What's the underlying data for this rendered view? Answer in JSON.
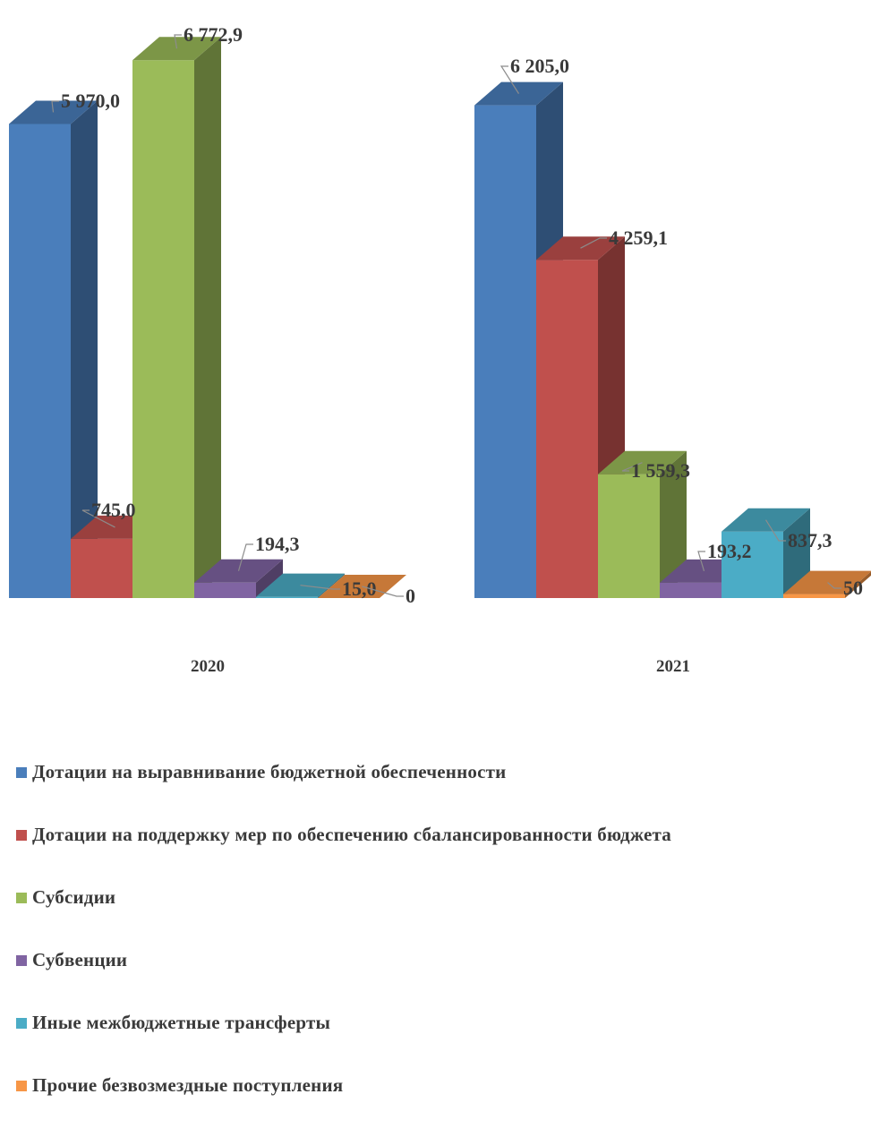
{
  "chart_data": {
    "type": "bar",
    "categories": [
      "2020",
      "2021"
    ],
    "series": [
      {
        "name": "Дотации на выравнивание бюджетной обеспеченности",
        "color": "#4a7ebb",
        "values": [
          5970.0,
          6205.0
        ],
        "labels": [
          "5 970,0",
          "6 205,0"
        ]
      },
      {
        "name": "Дотации на поддержку мер по обеспечению сбалансированности бюджета",
        "color": "#c0504d",
        "values": [
          745.0,
          4259.1
        ],
        "labels": [
          "745,0",
          "4 259,1"
        ]
      },
      {
        "name": "Субсидии",
        "color": "#9bbb59",
        "values": [
          6772.9,
          1559.3
        ],
        "labels": [
          "6 772,9",
          "1 559,3"
        ]
      },
      {
        "name": "Субвенции",
        "color": "#8064a2",
        "values": [
          194.3,
          193.2
        ],
        "labels": [
          "194,3",
          "193,2"
        ]
      },
      {
        "name": "Иные межбюджетные трансферты",
        "color": "#4bacc6",
        "values": [
          15.0,
          837.3
        ],
        "labels": [
          "15,0",
          "837,3"
        ]
      },
      {
        "name": "Прочие безвозмездные поступления",
        "color": "#f79646",
        "values": [
          0,
          50
        ],
        "labels": [
          "0",
          "50"
        ]
      }
    ],
    "legend_position": "bottom",
    "grid": false
  }
}
